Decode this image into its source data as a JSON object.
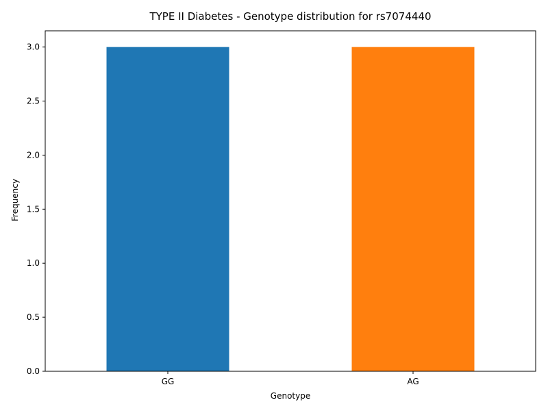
{
  "chart_data": {
    "type": "bar",
    "title": "TYPE II Diabetes - Genotype distribution for rs7074440",
    "xlabel": "Genotype",
    "ylabel": "Frequency",
    "categories": [
      "GG",
      "AG"
    ],
    "values": [
      3,
      3
    ],
    "colors": [
      "#1f77b4",
      "#ff7f0e"
    ],
    "ylim": [
      0,
      3.15
    ],
    "yticks": [
      0.0,
      0.5,
      1.0,
      1.5,
      2.0,
      2.5,
      3.0
    ],
    "ytick_labels": [
      "0.0",
      "0.5",
      "1.0",
      "1.5",
      "2.0",
      "2.5",
      "3.0"
    ],
    "grid": false,
    "legend": "none"
  }
}
